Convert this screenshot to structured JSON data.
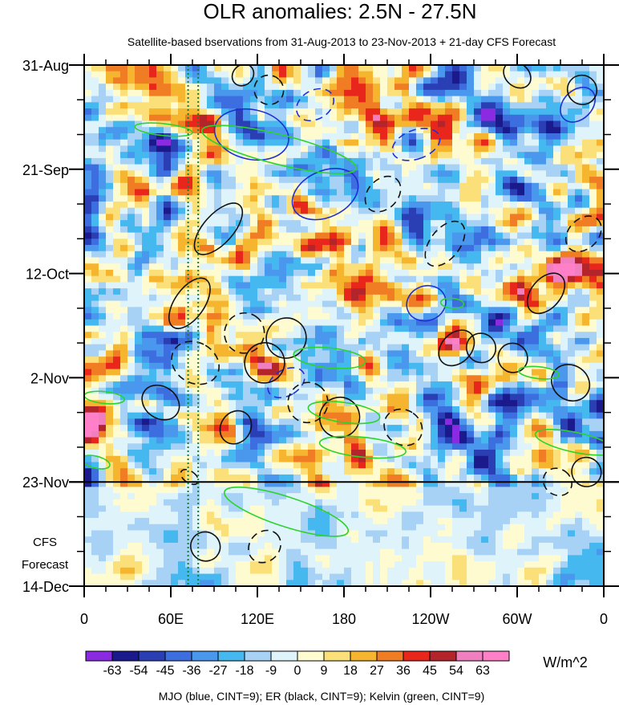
{
  "chart_data": {
    "type": "heatmap",
    "title": "OLR anomalies: 2.5N - 27.5N",
    "subtitle": "Satellite-based bservations from 31-Aug-2013 to 23-Nov-2013 + 21-day CFS Forecast",
    "x_axis": {
      "ticks": [
        {
          "lon": 0,
          "label": "0"
        },
        {
          "lon": 60,
          "label": "60E"
        },
        {
          "lon": 120,
          "label": "120E"
        },
        {
          "lon": 180,
          "label": "180"
        },
        {
          "lon": 240,
          "label": "120W"
        },
        {
          "lon": 300,
          "label": "60W"
        },
        {
          "lon": 360,
          "label": "0"
        }
      ],
      "range": [
        0,
        360
      ]
    },
    "y_axis": {
      "ticks": [
        {
          "day": 0,
          "label": "31-Aug"
        },
        {
          "day": 21,
          "label": "21-Sep"
        },
        {
          "day": 42,
          "label": "12-Oct"
        },
        {
          "day": 63,
          "label": "2-Nov"
        },
        {
          "day": 84,
          "label": "23-Nov"
        },
        {
          "day": 105,
          "label": "14-Dec"
        }
      ],
      "range": [
        0,
        105
      ],
      "forecast_start_day": 84,
      "forecast_label_line1": "CFS",
      "forecast_label_line2": "Forecast"
    },
    "colorbar": {
      "levels": [
        "-63",
        "-54",
        "-45",
        "-36",
        "-27",
        "-18",
        "-9",
        "0",
        "9",
        "18",
        "27",
        "36",
        "45",
        "54",
        "63"
      ],
      "colors": [
        "#8a2be2",
        "#1a1a8c",
        "#2b3fb5",
        "#3d6ee0",
        "#4a98ee",
        "#45b8f0",
        "#a8d2f5",
        "#dff3fb",
        "#fffbd0",
        "#fbe07a",
        "#f6b52f",
        "#f07c24",
        "#e8261c",
        "#b3252a",
        "#f07fc0",
        "#ff80c8"
      ],
      "units": "W/m^2"
    },
    "footer_legend": "MJO (blue, CINT=9); ER (black, CINT=9); Kelvin (green, CINT=9)",
    "contour_colors": {
      "mjo": "#1f2fd6",
      "er": "#111111",
      "kelvin": "#2bd42b",
      "reference": "#1b7a3a"
    },
    "reference_meridians_lon": [
      72,
      79
    ],
    "mjo_contours": [
      {
        "lon": 167,
        "day": 26,
        "rx": 16,
        "ry": 7,
        "angle": 65,
        "dashed": false
      },
      {
        "lon": 116,
        "day": 14,
        "rx": 26,
        "ry": 5,
        "angle": 12,
        "dashed": false
      },
      {
        "lon": 230,
        "day": 16,
        "rx": 10,
        "ry": 5,
        "angle": 70,
        "dashed": true
      },
      {
        "lon": 160,
        "day": 8,
        "rx": 10,
        "ry": 4,
        "angle": 60,
        "dashed": true
      },
      {
        "lon": 237,
        "day": 48,
        "rx": 12,
        "ry": 4,
        "angle": 70,
        "dashed": false
      },
      {
        "lon": 342,
        "day": 8,
        "rx": 10,
        "ry": 4,
        "angle": 45,
        "dashed": false
      },
      {
        "lon": 140,
        "day": 64,
        "rx": 9,
        "ry": 4,
        "angle": 60,
        "dashed": true
      }
    ],
    "er_contours": [
      {
        "lon": 53,
        "day": 68,
        "rx": 11,
        "ry": 4,
        "angle": -55,
        "dashed": false
      },
      {
        "lon": 77,
        "day": 60,
        "rx": 14,
        "ry": 5,
        "angle": -60,
        "dashed": true
      },
      {
        "lon": 93,
        "day": 33,
        "rx": 22,
        "ry": 3,
        "angle": -48,
        "dashed": false
      },
      {
        "lon": 73,
        "day": 48,
        "rx": 20,
        "ry": 3,
        "angle": -55,
        "dashed": false
      },
      {
        "lon": 111,
        "day": 54,
        "rx": 14,
        "ry": 4,
        "angle": -55,
        "dashed": true
      },
      {
        "lon": 125,
        "day": 60,
        "rx": 14,
        "ry": 4,
        "angle": -55,
        "dashed": false
      },
      {
        "lon": 140,
        "day": 55,
        "rx": 14,
        "ry": 4,
        "angle": -55,
        "dashed": false
      },
      {
        "lon": 155,
        "day": 68,
        "rx": 14,
        "ry": 4,
        "angle": -55,
        "dashed": true
      },
      {
        "lon": 177,
        "day": 71,
        "rx": 14,
        "ry": 4,
        "angle": -55,
        "dashed": false
      },
      {
        "lon": 221,
        "day": 73,
        "rx": 12,
        "ry": 4,
        "angle": -55,
        "dashed": true
      },
      {
        "lon": 250,
        "day": 36,
        "rx": 18,
        "ry": 3,
        "angle": -52,
        "dashed": true
      },
      {
        "lon": 258,
        "day": 57,
        "rx": 14,
        "ry": 3,
        "angle": -45,
        "dashed": false
      },
      {
        "lon": 275,
        "day": 57,
        "rx": 10,
        "ry": 3,
        "angle": -45,
        "dashed": false
      },
      {
        "lon": 297,
        "day": 59,
        "rx": 10,
        "ry": 3,
        "angle": -50,
        "dashed": false
      },
      {
        "lon": 320,
        "day": 46,
        "rx": 16,
        "ry": 3,
        "angle": -50,
        "dashed": false
      },
      {
        "lon": 337,
        "day": 64,
        "rx": 12,
        "ry": 4,
        "angle": -55,
        "dashed": false
      },
      {
        "lon": 346,
        "day": 34,
        "rx": 14,
        "ry": 3,
        "angle": -45,
        "dashed": true
      },
      {
        "lon": 348,
        "day": 82,
        "rx": 10,
        "ry": 3,
        "angle": -55,
        "dashed": false
      },
      {
        "lon": 345,
        "day": 5,
        "rx": 10,
        "ry": 3,
        "angle": -50,
        "dashed": false
      },
      {
        "lon": 300,
        "day": 2,
        "rx": 8,
        "ry": 3,
        "angle": -50,
        "dashed": false
      },
      {
        "lon": 128,
        "day": 5,
        "rx": 10,
        "ry": 3,
        "angle": -45,
        "dashed": true
      },
      {
        "lon": 110,
        "day": 2,
        "rx": 8,
        "ry": 2,
        "angle": -45,
        "dashed": false
      },
      {
        "lon": 125,
        "day": 97,
        "rx": 12,
        "ry": 3,
        "angle": -45,
        "dashed": true
      },
      {
        "lon": 84,
        "day": 97,
        "rx": 10,
        "ry": 3,
        "angle": -60,
        "dashed": false
      },
      {
        "lon": 105,
        "day": 73,
        "rx": 12,
        "ry": 3,
        "angle": -55,
        "dashed": false
      },
      {
        "lon": 207,
        "day": 26,
        "rx": 14,
        "ry": 3,
        "angle": -45,
        "dashed": true
      },
      {
        "lon": 328,
        "day": 84,
        "rx": 9,
        "ry": 3,
        "angle": -55,
        "dashed": true
      },
      {
        "lon": 73,
        "day": 83,
        "rx": 4,
        "ry": 2,
        "angle": -55,
        "dashed": true
      }
    ],
    "kelvin_contours": [
      {
        "lon": 135,
        "day": 17,
        "rx": 55,
        "ry": 3,
        "angle": 14,
        "dashed": false
      },
      {
        "lon": 140,
        "day": 90,
        "rx": 45,
        "ry": 3,
        "angle": 18,
        "dashed": false
      },
      {
        "lon": 180,
        "day": 70,
        "rx": 25,
        "ry": 2,
        "angle": 8,
        "dashed": false
      },
      {
        "lon": 170,
        "day": 59,
        "rx": 25,
        "ry": 2,
        "angle": 6,
        "dashed": false
      },
      {
        "lon": 193,
        "day": 77,
        "rx": 30,
        "ry": 2,
        "angle": 6,
        "dashed": false
      },
      {
        "lon": 255,
        "day": 48,
        "rx": 8,
        "ry": 1,
        "angle": 5,
        "dashed": false
      },
      {
        "lon": 340,
        "day": 76,
        "rx": 28,
        "ry": 2,
        "angle": 12,
        "dashed": false
      },
      {
        "lon": 14,
        "day": 67,
        "rx": 14,
        "ry": 1.2,
        "angle": 6,
        "dashed": false
      },
      {
        "lon": 8,
        "day": 80,
        "rx": 10,
        "ry": 1.2,
        "angle": 14,
        "dashed": false
      },
      {
        "lon": 315,
        "day": 62,
        "rx": 14,
        "ry": 1.2,
        "angle": 6,
        "dashed": false
      },
      {
        "lon": 55,
        "day": 13,
        "rx": 20,
        "ry": 1.2,
        "angle": 6,
        "dashed": false
      }
    ]
  }
}
